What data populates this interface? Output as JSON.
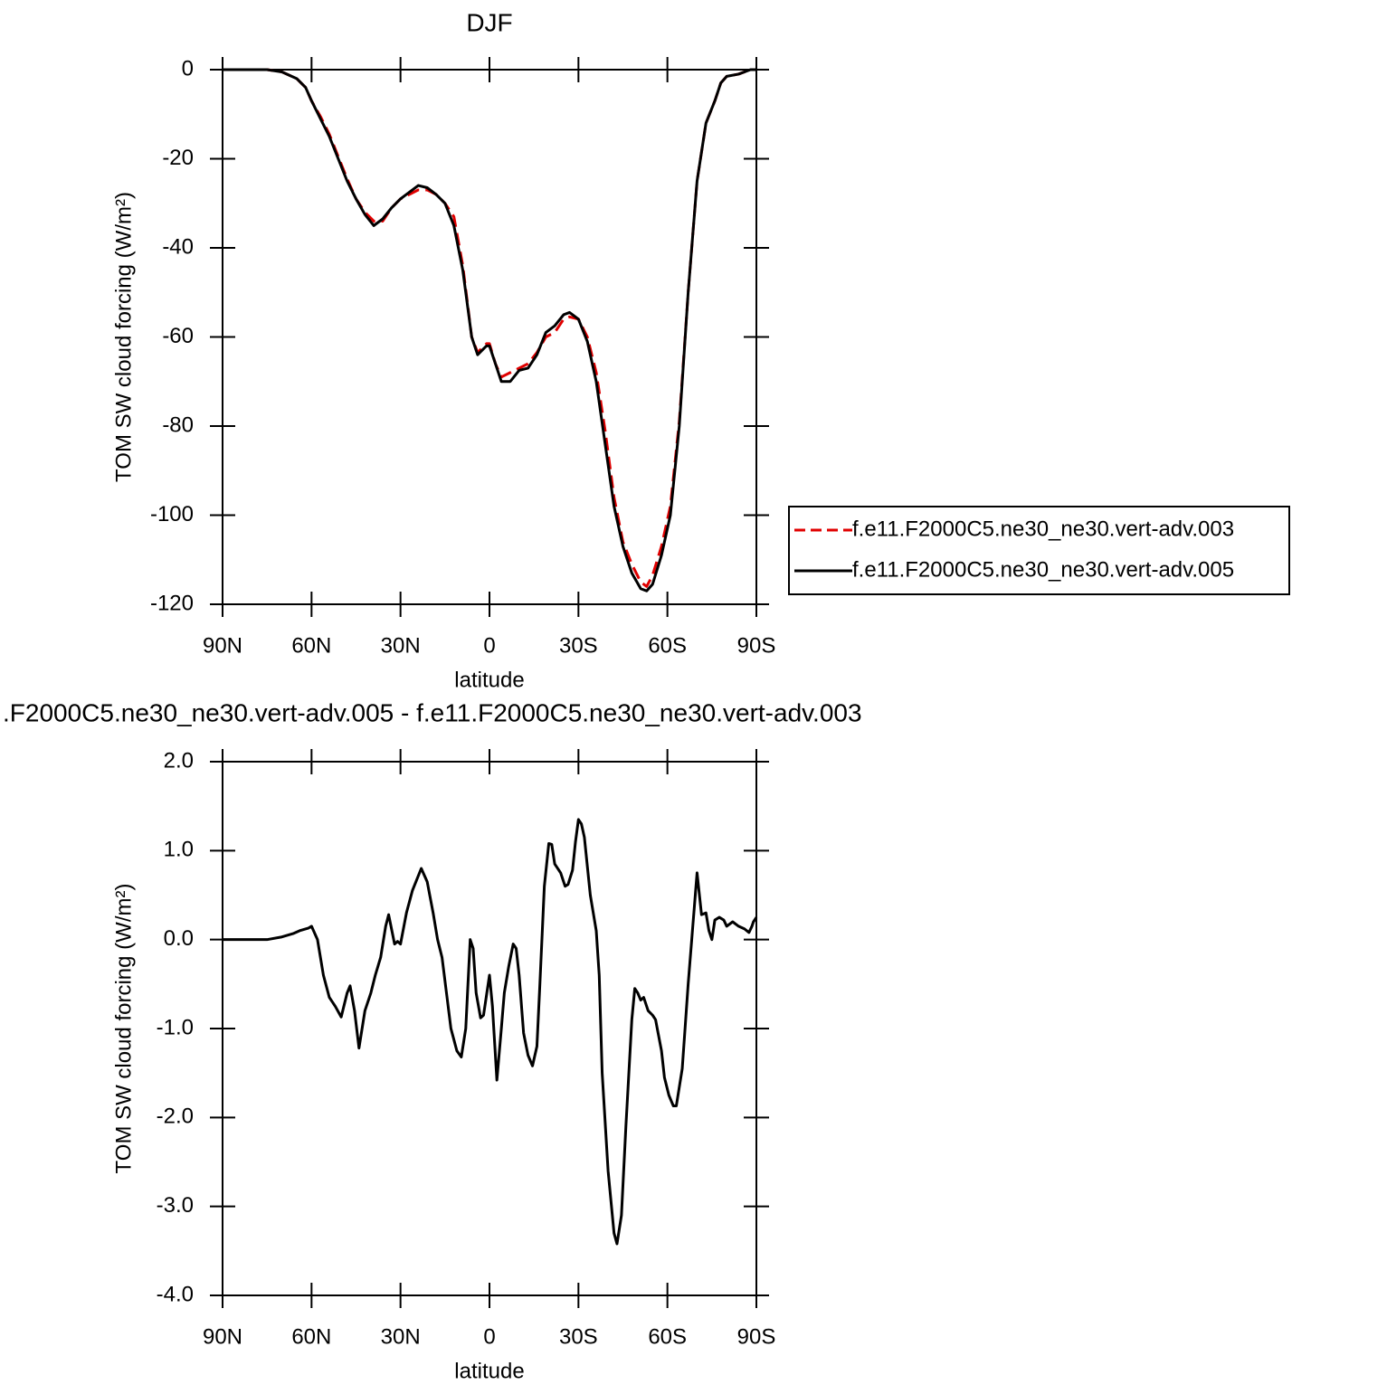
{
  "chart_data": [
    {
      "type": "line",
      "title": "DJF",
      "xlabel": "latitude",
      "ylabel": "TOM SW cloud forcing (W/m²)",
      "xlim": [
        90,
        -90
      ],
      "ylim": [
        0,
        -120
      ],
      "xticks": [
        {
          "value": 90,
          "label": "90N"
        },
        {
          "value": 60,
          "label": "60N"
        },
        {
          "value": 30,
          "label": "30N"
        },
        0,
        {
          "value": -30,
          "label": "30S"
        },
        {
          "value": -60,
          "label": "60S"
        },
        {
          "value": -90,
          "label": "90S"
        }
      ],
      "yticks": [
        0,
        -20,
        -40,
        -60,
        -80,
        -100,
        -120
      ],
      "legend": "right",
      "x": [
        90,
        80,
        75,
        70,
        65,
        62,
        60,
        57,
        54,
        51,
        48,
        45,
        42,
        39,
        36,
        33,
        30,
        27,
        24,
        21,
        18,
        15,
        12,
        9,
        6,
        4,
        1,
        0,
        -2,
        -4,
        -7,
        -10,
        -13,
        -16,
        -19,
        -22,
        -25,
        -27,
        -30,
        -33,
        -36,
        -39,
        -42,
        -45,
        -48,
        -51,
        -53,
        -55,
        -58,
        -61,
        -64,
        -67,
        -70,
        -73,
        -76,
        -78,
        -80,
        -84,
        -88,
        -90
      ],
      "series": [
        {
          "name": "f.e11.F2000C5.ne30_ne30.vert-adv.003",
          "color": "#e00000",
          "dashed": true,
          "values": [
            0,
            0,
            0,
            -0.5,
            -2,
            -4,
            -7,
            -10.5,
            -14.5,
            -19.5,
            -24.5,
            -29,
            -32,
            -34,
            -34,
            -31,
            -29,
            -28,
            -27,
            -27,
            -28,
            -30,
            -33,
            -44,
            -60,
            -63.5,
            -61.5,
            -61.5,
            -66,
            -69,
            -68,
            -67,
            -66,
            -63.5,
            -60,
            -59,
            -56,
            -55.5,
            -56,
            -60,
            -68,
            -81,
            -96,
            -106,
            -111,
            -115,
            -116,
            -113.5,
            -107,
            -98,
            -79,
            -50,
            -25,
            -12,
            -7,
            -3,
            -1.5,
            -1,
            0,
            0
          ]
        },
        {
          "name": "f.e11.F2000C5.ne30_ne30.vert-adv.005",
          "color": "#000000",
          "dashed": false,
          "values": [
            0,
            0,
            0,
            -0.5,
            -2,
            -4,
            -7,
            -11,
            -15,
            -20,
            -25,
            -29,
            -32.5,
            -35,
            -33.5,
            -31,
            -29,
            -27.5,
            -26,
            -26.5,
            -28,
            -30,
            -35,
            -45,
            -60,
            -64,
            -62,
            -62,
            -66,
            -70,
            -70,
            -67.5,
            -67,
            -64,
            -59,
            -57.5,
            -55,
            -54.5,
            -56,
            -61,
            -70,
            -84,
            -98,
            -107,
            -113,
            -116.5,
            -117,
            -115.5,
            -109,
            -100,
            -80,
            -50,
            -25,
            -12,
            -7,
            -3,
            -1.5,
            -1,
            0,
            0
          ]
        }
      ]
    },
    {
      "type": "line",
      "title": ".F2000C5.ne30_ne30.vert-adv.005 - f.e11.F2000C5.ne30_ne30.vert-adv.003",
      "xlabel": "latitude",
      "ylabel": "TOM SW cloud forcing (W/m²)",
      "xlim": [
        90,
        -90
      ],
      "ylim": [
        2,
        -4
      ],
      "xticks": [
        {
          "value": 90,
          "label": "90N"
        },
        {
          "value": 60,
          "label": "60N"
        },
        {
          "value": 30,
          "label": "30N"
        },
        0,
        {
          "value": -30,
          "label": "30S"
        },
        {
          "value": -60,
          "label": "60S"
        },
        {
          "value": -90,
          "label": "90S"
        }
      ],
      "yticks": [
        {
          "value": 2,
          "label": "2.0"
        },
        {
          "value": 1,
          "label": "1.0"
        },
        {
          "value": 0,
          "label": "0.0"
        },
        {
          "value": -1,
          "label": "-1.0"
        },
        {
          "value": -2,
          "label": "-2.0"
        },
        {
          "value": -3,
          "label": "-3.0"
        },
        {
          "value": -4,
          "label": "-4.0"
        }
      ],
      "color": "#000000",
      "x": [
        90,
        75,
        70,
        66,
        64,
        61,
        60,
        58,
        56,
        54,
        52,
        50,
        48,
        47,
        45.5,
        44,
        42,
        40,
        38.5,
        36.7,
        35,
        34,
        32,
        31,
        30,
        28,
        26,
        23,
        21,
        19,
        17.5,
        16,
        13,
        11,
        9.5,
        8,
        6.5,
        5.5,
        4.5,
        3,
        2,
        0,
        -1,
        -2.5,
        -4,
        -5,
        -6.5,
        -8,
        -9,
        -10,
        -11.5,
        -13,
        -14.5,
        -16,
        -17,
        -18.5,
        -20,
        -21,
        -22,
        -24,
        -25.5,
        -26.5,
        -28,
        -29,
        -30,
        -31,
        -32,
        -34,
        -36,
        -37,
        -38,
        -40,
        -42,
        -43,
        -44.5,
        -46,
        -48,
        -49,
        -50,
        -51,
        -52,
        -53.5,
        -55,
        -56,
        -58,
        -59,
        -60.5,
        -62,
        -63,
        -65,
        -67,
        -70,
        -71.5,
        -73,
        -74,
        -75,
        -76,
        -77.5,
        -79,
        -80,
        -82,
        -84,
        -86,
        -87.5,
        -88.5,
        -89,
        -90
      ],
      "values": [
        0,
        0,
        0.03,
        0.07,
        0.1,
        0.13,
        0.15,
        0,
        -0.4,
        -0.65,
        -0.75,
        -0.87,
        -0.6,
        -0.52,
        -0.8,
        -1.22,
        -0.8,
        -0.6,
        -0.4,
        -0.2,
        0.15,
        0.28,
        -0.05,
        -0.02,
        -0.05,
        0.3,
        0.55,
        0.8,
        0.65,
        0.3,
        0,
        -0.2,
        -1,
        -1.25,
        -1.32,
        -1,
        0,
        -0.1,
        -0.6,
        -0.88,
        -0.85,
        -0.4,
        -0.75,
        -1.58,
        -1,
        -0.6,
        -0.3,
        -0.05,
        -0.1,
        -0.4,
        -1.05,
        -1.3,
        -1.42,
        -1.2,
        -0.5,
        0.6,
        1.08,
        1.07,
        0.85,
        0.75,
        0.6,
        0.62,
        0.78,
        1.1,
        1.35,
        1.3,
        1.15,
        0.5,
        0.1,
        -0.4,
        -1.5,
        -2.6,
        -3.3,
        -3.42,
        -3.1,
        -2.1,
        -0.9,
        -0.55,
        -0.6,
        -0.68,
        -0.65,
        -0.8,
        -0.85,
        -0.9,
        -1.25,
        -1.55,
        -1.75,
        -1.87,
        -1.87,
        -1.45,
        -0.5,
        0.75,
        0.28,
        0.3,
        0.1,
        0,
        0.22,
        0.25,
        0.22,
        0.15,
        0.2,
        0.15,
        0.12,
        0.08,
        0.15,
        0.2,
        0.25
      ]
    }
  ]
}
